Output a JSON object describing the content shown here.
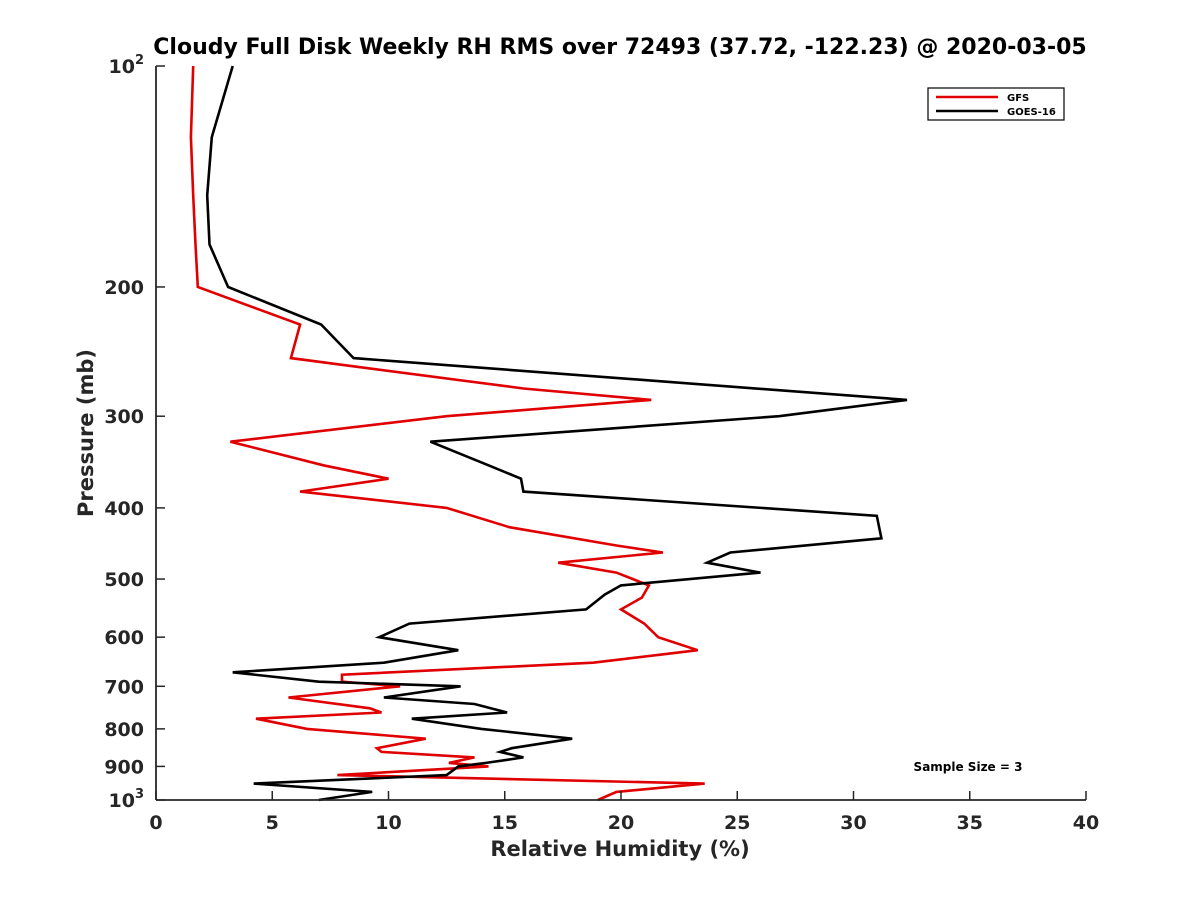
{
  "chart_data": {
    "type": "line",
    "title": "Cloudy Full Disk Weekly RH RMS over 72493 (37.72, -122.23) @ 2020-03-05",
    "xlabel": "Relative Humidity (%)",
    "ylabel": "Pressure (mb)",
    "xlim": [
      0,
      40
    ],
    "ylim": [
      100,
      1000
    ],
    "y_scale": "log",
    "y_reversed": true,
    "x_ticks": [
      "0",
      "5",
      "10",
      "15",
      "20",
      "25",
      "30",
      "35",
      "40"
    ],
    "y_ticks": [
      {
        "value": 100,
        "base": "10",
        "exp": "2"
      },
      {
        "value": 200,
        "label": "200"
      },
      {
        "value": 300,
        "label": "300"
      },
      {
        "value": 400,
        "label": "400"
      },
      {
        "value": 500,
        "label": "500"
      },
      {
        "value": 600,
        "label": "600"
      },
      {
        "value": 700,
        "label": "700"
      },
      {
        "value": 800,
        "label": "800"
      },
      {
        "value": 900,
        "label": "900"
      },
      {
        "value": 1000,
        "base": "10",
        "exp": "3"
      }
    ],
    "grid": false,
    "legend_position": "top-right",
    "annotation": "Sample Size = 3",
    "series": [
      {
        "name": "GFS",
        "color": "#e00000",
        "points": [
          [
            1.6,
            100
          ],
          [
            1.5,
            125
          ],
          [
            1.6,
            150
          ],
          [
            1.7,
            175
          ],
          [
            1.8,
            200
          ],
          [
            6.2,
            225
          ],
          [
            5.8,
            250
          ],
          [
            15.8,
            275
          ],
          [
            21.3,
            285
          ],
          [
            12.5,
            300
          ],
          [
            3.2,
            325
          ],
          [
            7.2,
            350
          ],
          [
            10.0,
            365
          ],
          [
            6.2,
            380
          ],
          [
            12.5,
            400
          ],
          [
            15.2,
            425
          ],
          [
            19.8,
            450
          ],
          [
            21.8,
            460
          ],
          [
            17.3,
            475
          ],
          [
            19.8,
            490
          ],
          [
            21.2,
            510
          ],
          [
            20.9,
            530
          ],
          [
            20.0,
            550
          ],
          [
            21.0,
            575
          ],
          [
            21.6,
            600
          ],
          [
            23.3,
            625
          ],
          [
            18.8,
            650
          ],
          [
            8.0,
            675
          ],
          [
            8.0,
            690
          ],
          [
            10.5,
            700
          ],
          [
            5.7,
            725
          ],
          [
            9.2,
            750
          ],
          [
            9.7,
            760
          ],
          [
            4.3,
            775
          ],
          [
            6.5,
            800
          ],
          [
            11.6,
            825
          ],
          [
            9.5,
            850
          ],
          [
            9.7,
            860
          ],
          [
            13.7,
            875
          ],
          [
            12.6,
            890
          ],
          [
            14.3,
            900
          ],
          [
            7.8,
            925
          ],
          [
            23.6,
            950
          ],
          [
            19.8,
            975
          ],
          [
            19.0,
            1000
          ]
        ]
      },
      {
        "name": "GOES-16",
        "color": "#000000",
        "points": [
          [
            3.3,
            100
          ],
          [
            2.4,
            125
          ],
          [
            2.2,
            150
          ],
          [
            2.3,
            175
          ],
          [
            3.1,
            200
          ],
          [
            7.1,
            225
          ],
          [
            8.5,
            250
          ],
          [
            32.3,
            285
          ],
          [
            26.8,
            300
          ],
          [
            11.8,
            325
          ],
          [
            14.3,
            350
          ],
          [
            15.7,
            365
          ],
          [
            15.8,
            380
          ],
          [
            31.0,
            410
          ],
          [
            31.2,
            440
          ],
          [
            24.7,
            460
          ],
          [
            23.7,
            475
          ],
          [
            26.0,
            490
          ],
          [
            20.0,
            510
          ],
          [
            19.3,
            525
          ],
          [
            18.5,
            550
          ],
          [
            10.9,
            575
          ],
          [
            9.6,
            600
          ],
          [
            13.0,
            625
          ],
          [
            9.8,
            650
          ],
          [
            3.3,
            670
          ],
          [
            7.0,
            690
          ],
          [
            13.1,
            700
          ],
          [
            9.8,
            725
          ],
          [
            13.7,
            740
          ],
          [
            15.1,
            760
          ],
          [
            11.0,
            775
          ],
          [
            14.0,
            800
          ],
          [
            17.9,
            825
          ],
          [
            15.3,
            850
          ],
          [
            14.8,
            860
          ],
          [
            15.8,
            875
          ],
          [
            14.2,
            890
          ],
          [
            13.0,
            900
          ],
          [
            12.5,
            925
          ],
          [
            4.2,
            950
          ],
          [
            9.3,
            975
          ],
          [
            7.0,
            1000
          ]
        ]
      }
    ]
  }
}
